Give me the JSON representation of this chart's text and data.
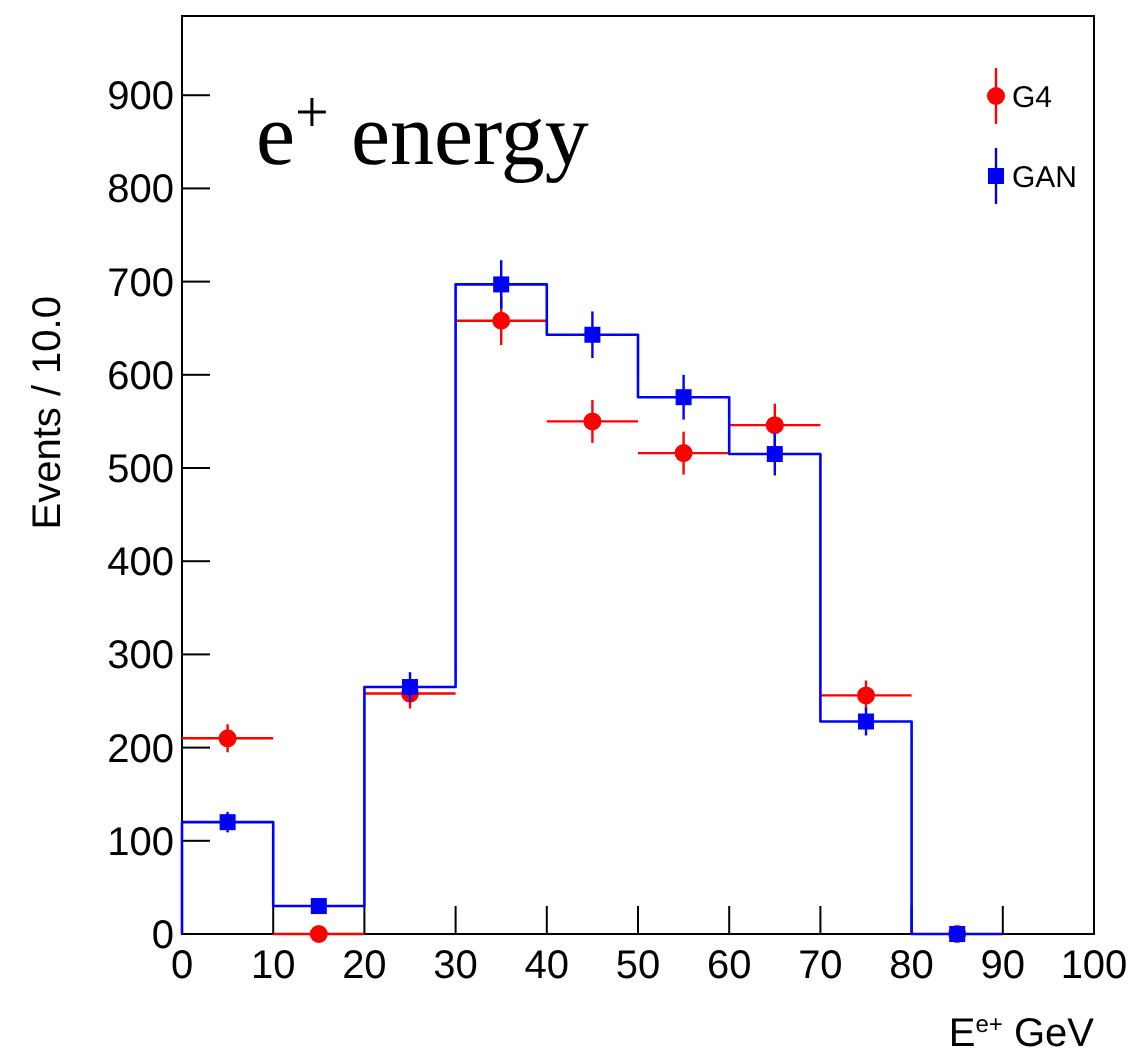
{
  "chart_data": {
    "type": "histogram",
    "title": "e$^{+}$ energy",
    "xlabel": "E$^{e+}$ GeV",
    "ylabel": "Events / 10.0",
    "bins": [
      0,
      10,
      20,
      30,
      40,
      50,
      60,
      70,
      80,
      90
    ],
    "series": [
      {
        "name": "G4",
        "type": "scatter",
        "color": "#ff0000",
        "marker": "circle",
        "x": [
          5,
          15,
          25,
          35,
          45,
          55,
          65,
          75,
          85
        ],
        "values": [
          210,
          0,
          258,
          658,
          550,
          516,
          546,
          256,
          0
        ],
        "errors": [
          15,
          null,
          16,
          26,
          23,
          23,
          23,
          16,
          null
        ],
        "xerrors": [
          5,
          5,
          5,
          5,
          5,
          5,
          5,
          5,
          null
        ]
      },
      {
        "color": "#0000ff",
        "values": [
          120,
          30,
          265,
          697,
          643,
          576,
          515,
          228,
          0
        ]
      },
      {
        "name": "GAN",
        "type": "scatter",
        "color": "#0000ff",
        "marker": "square",
        "x": [
          5,
          15,
          25,
          35,
          45,
          55,
          65,
          75,
          85
        ],
        "values": [
          120,
          30,
          265,
          697,
          643,
          576,
          515,
          228,
          0
        ],
        "errors": [
          11,
          5,
          16,
          26,
          25,
          24,
          23,
          15,
          null
        ]
      }
    ],
    "xlim": [
      0,
      100
    ],
    "ylim": [
      0,
      985
    ],
    "xticks": [
      0,
      10,
      20,
      30,
      40,
      50,
      60,
      70,
      80,
      90,
      100
    ],
    "yticks": [
      0,
      100,
      200,
      300,
      400,
      500,
      600,
      700,
      800,
      900
    ],
    "grid": false,
    "legend": "top right"
  }
}
